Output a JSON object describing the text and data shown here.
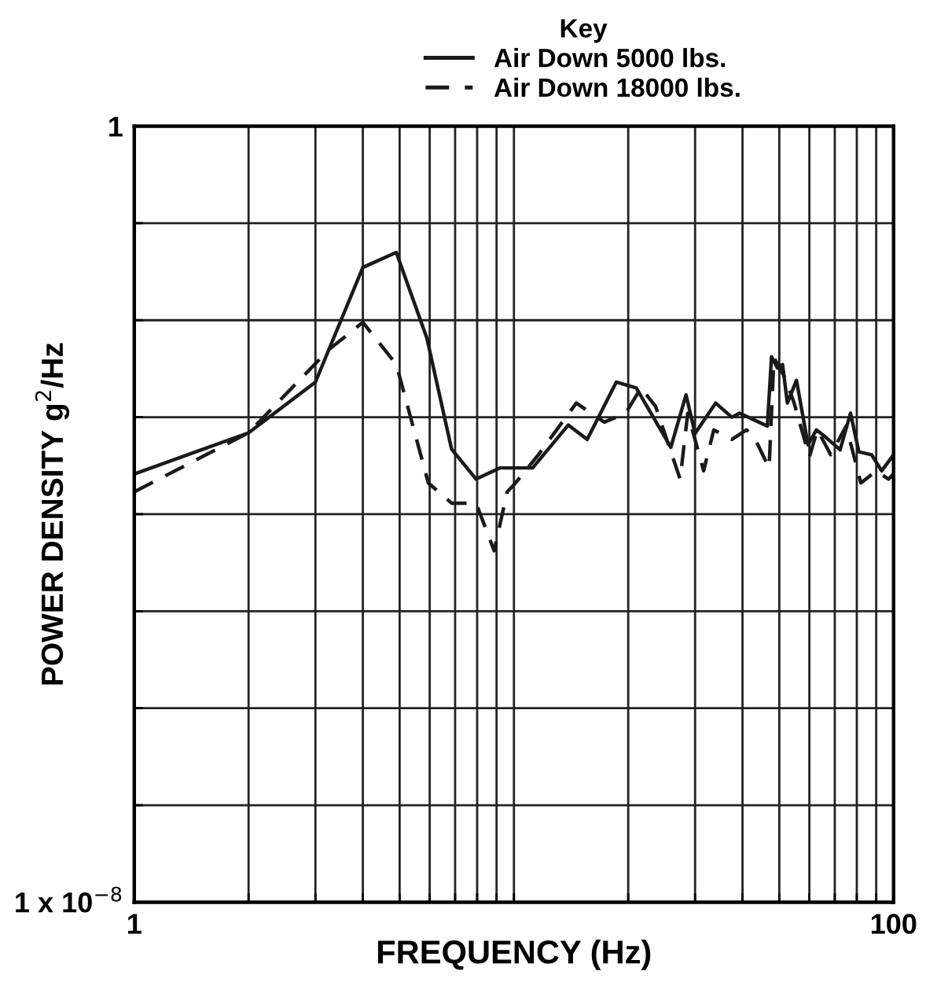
{
  "chart_data": {
    "type": "line",
    "xlabel": "FREQUENCY (Hz)",
    "ylabel": "POWER DENSITY g$^{2}$/Hz",
    "legend_title": "Key",
    "legend": "top",
    "log": "xy",
    "grid": true,
    "marker": "none",
    "xlim": [
      1,
      100
    ],
    "ylim": [
      1e-08,
      1
    ],
    "xticks": [
      {
        "value": 1,
        "label": "1"
      },
      {
        "value": 2,
        "label": null
      },
      {
        "value": 3,
        "label": null
      },
      {
        "value": 4,
        "label": null
      },
      {
        "value": 5,
        "label": null
      },
      {
        "value": 6,
        "label": null
      },
      {
        "value": 7,
        "label": null
      },
      {
        "value": 8,
        "label": null
      },
      {
        "value": 9,
        "label": null
      },
      {
        "value": 10,
        "label": null
      },
      {
        "value": 20,
        "label": null
      },
      {
        "value": 30,
        "label": null
      },
      {
        "value": 40,
        "label": null
      },
      {
        "value": 50,
        "label": null
      },
      {
        "value": 60,
        "label": null
      },
      {
        "value": 70,
        "label": null
      },
      {
        "value": 80,
        "label": null
      },
      {
        "value": 90,
        "label": null
      },
      {
        "value": 100,
        "label": "100"
      }
    ],
    "yticks": [
      {
        "value": 1e-08,
        "label": "1 x 10$^{−8}$"
      },
      {
        "value": 1e-07,
        "label": null
      },
      {
        "value": 1e-06,
        "label": null
      },
      {
        "value": 1e-05,
        "label": null
      },
      {
        "value": 0.0001,
        "label": null
      },
      {
        "value": 0.001,
        "label": null
      },
      {
        "value": 0.01,
        "label": null
      },
      {
        "value": 0.1,
        "label": null
      },
      {
        "value": 1,
        "label": "1"
      }
    ],
    "series": [
      {
        "name": "Air Down 5000 lbs.",
        "color": "#1a1a1a",
        "line_style": "solid",
        "x": [
          1,
          2,
          3,
          4,
          4.9,
          5.9,
          6.85,
          7.95,
          9.2,
          11.2,
          13.9,
          15.6,
          18.6,
          21,
          25.9,
          28.4,
          30,
          34,
          37.5,
          39.3,
          46.5,
          47.7,
          49.5,
          51,
          52.5,
          55.5,
          59.5,
          62.6,
          66,
          72.3,
          77,
          81,
          87.5,
          93,
          100
        ],
        "values": [
          0.00026,
          0.00069,
          0.0023,
          0.035,
          0.05,
          0.0065,
          0.00047,
          0.00023,
          0.0003,
          0.0003,
          0.00083,
          0.00059,
          0.0023,
          0.002,
          0.00049,
          0.0017,
          0.00068,
          0.0014,
          0.001,
          0.0011,
          0.00081,
          0.0042,
          0.0032,
          0.0035,
          0.0014,
          0.0024,
          0.00052,
          0.00074,
          0.00063,
          0.00046,
          0.0011,
          0.00044,
          0.00041,
          0.00028,
          0.00041
        ]
      },
      {
        "name": "Air Down 18000 lbs.",
        "color": "#1a1a1a",
        "line_style": "dashed",
        "x": [
          1,
          2,
          3.26,
          4,
          4.9,
          5.95,
          6.85,
          7.95,
          8.87,
          9.6,
          10.1,
          11.6,
          14.6,
          17.3,
          19.7,
          21.6,
          23.6,
          27.4,
          28.7,
          31.6,
          33.6,
          37.5,
          41,
          43.5,
          47,
          48.4,
          51.9,
          54.7,
          60,
          63,
          68.3,
          75,
          82,
          90,
          97,
          100
        ],
        "values": [
          0.00017,
          0.00069,
          0.005,
          0.0095,
          0.0035,
          0.00021,
          0.00013,
          0.00013,
          4.2e-05,
          0.00017,
          0.00021,
          0.00041,
          0.0014,
          0.00089,
          0.0011,
          0.002,
          0.0013,
          0.00023,
          0.0011,
          0.00028,
          0.00074,
          0.00059,
          0.00074,
          0.00056,
          0.0003,
          0.0041,
          0.0025,
          0.0014,
          0.00039,
          0.00074,
          0.00041,
          0.00081,
          0.00021,
          0.00028,
          0.00023,
          0.00026
        ]
      }
    ]
  }
}
